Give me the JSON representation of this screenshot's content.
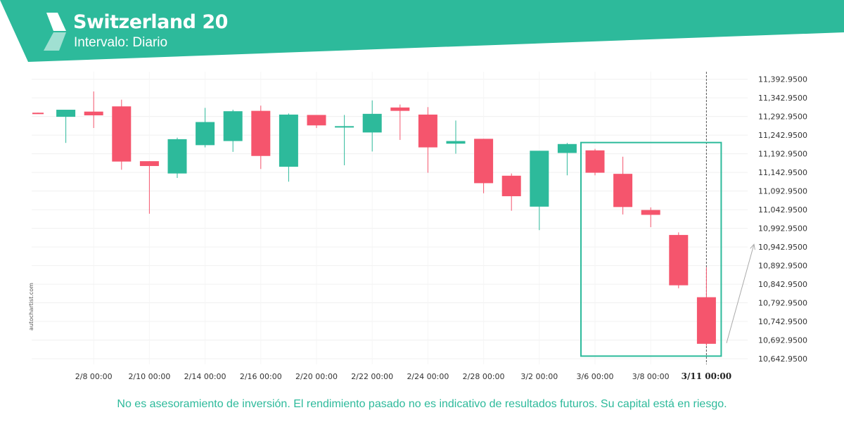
{
  "header": {
    "title": "Switzerland 20",
    "subtitle": "Intervalo: Diario",
    "brand_color": "#2dba9b",
    "logo_icon": "autochartist-logo-icon"
  },
  "source_label": "autochartist.com",
  "disclaimer": "No es asesoramiento de inversión. El rendimiento pasado no es indicativo de resultados futuros. Su capital está en riesgo.",
  "chart_data": {
    "type": "candlestick",
    "up_color": "#2dba9b",
    "down_color": "#f5556d",
    "pattern_color": "#2dba9b",
    "ylim": [
      10627.95,
      11412.95
    ],
    "grid": true,
    "y_ticks": [
      "11,392.9500",
      "11,342.9500",
      "11,292.9500",
      "11,242.9500",
      "11,192.9500",
      "11,142.9500",
      "11,092.9500",
      "11,042.9500",
      "10,992.9500",
      "10,942.9500",
      "10,892.9500",
      "10,842.9500",
      "10,792.9500",
      "10,742.9500",
      "10,692.9500",
      "10,642.9500"
    ],
    "x_ticks": [
      {
        "label": "2/8 00:00",
        "index": 2
      },
      {
        "label": "2/10 00:00",
        "index": 4
      },
      {
        "label": "2/14 00:00",
        "index": 6
      },
      {
        "label": "2/16 00:00",
        "index": 8
      },
      {
        "label": "2/20 00:00",
        "index": 10
      },
      {
        "label": "2/22 00:00",
        "index": 12
      },
      {
        "label": "2/24 00:00",
        "index": 14
      },
      {
        "label": "2/28 00:00",
        "index": 16
      },
      {
        "label": "3/2 00:00",
        "index": 18
      },
      {
        "label": "3/6 00:00",
        "index": 20
      },
      {
        "label": "3/8 00:00",
        "index": 22
      },
      {
        "label": "3/11 00:00",
        "index": 24,
        "highlight": true
      }
    ],
    "candles": [
      {
        "o": 11303,
        "h": 11303,
        "l": 11301,
        "c": 11301
      },
      {
        "o": 11292,
        "h": 11310,
        "l": 11222,
        "c": 11311
      },
      {
        "o": 11306,
        "h": 11360,
        "l": 11262,
        "c": 11296
      },
      {
        "o": 11320,
        "h": 11338,
        "l": 11150,
        "c": 11172
      },
      {
        "o": 11173,
        "h": 11173,
        "l": 11032,
        "c": 11160
      },
      {
        "o": 11140,
        "h": 11236,
        "l": 11128,
        "c": 11232
      },
      {
        "o": 11216,
        "h": 11316,
        "l": 11210,
        "c": 11278
      },
      {
        "o": 11227,
        "h": 11311,
        "l": 11198,
        "c": 11307
      },
      {
        "o": 11308,
        "h": 11322,
        "l": 11152,
        "c": 11187
      },
      {
        "o": 11158,
        "h": 11301,
        "l": 11118,
        "c": 11298
      },
      {
        "o": 11297,
        "h": 11297,
        "l": 11262,
        "c": 11269
      },
      {
        "o": 11265,
        "h": 11297,
        "l": 11162,
        "c": 11267
      },
      {
        "o": 11250,
        "h": 11336,
        "l": 11199,
        "c": 11300
      },
      {
        "o": 11317,
        "h": 11325,
        "l": 11230,
        "c": 11308
      },
      {
        "o": 11298,
        "h": 11318,
        "l": 11142,
        "c": 11210
      },
      {
        "o": 11220,
        "h": 11282,
        "l": 11193,
        "c": 11227
      },
      {
        "o": 11233,
        "h": 11233,
        "l": 11087,
        "c": 11114
      },
      {
        "o": 11134,
        "h": 11140,
        "l": 11040,
        "c": 11079
      },
      {
        "o": 11051,
        "h": 11200,
        "l": 10988,
        "c": 11201
      },
      {
        "o": 11195,
        "h": 11222,
        "l": 11135,
        "c": 11219
      },
      {
        "o": 11202,
        "h": 11206,
        "l": 11135,
        "c": 11142
      },
      {
        "o": 11139,
        "h": 11185,
        "l": 11030,
        "c": 11050
      },
      {
        "o": 11042,
        "h": 11049,
        "l": 10996,
        "c": 11029
      },
      {
        "o": 10975,
        "h": 10982,
        "l": 10832,
        "c": 10840
      },
      {
        "o": 10808,
        "h": 10888,
        "l": 10678,
        "c": 10683
      }
    ],
    "pattern_box": {
      "start_index": 20,
      "end_index": 24,
      "top": 11223,
      "bottom": 10650
    },
    "projection_arrow": {
      "from": 10685,
      "to": 10950
    }
  }
}
